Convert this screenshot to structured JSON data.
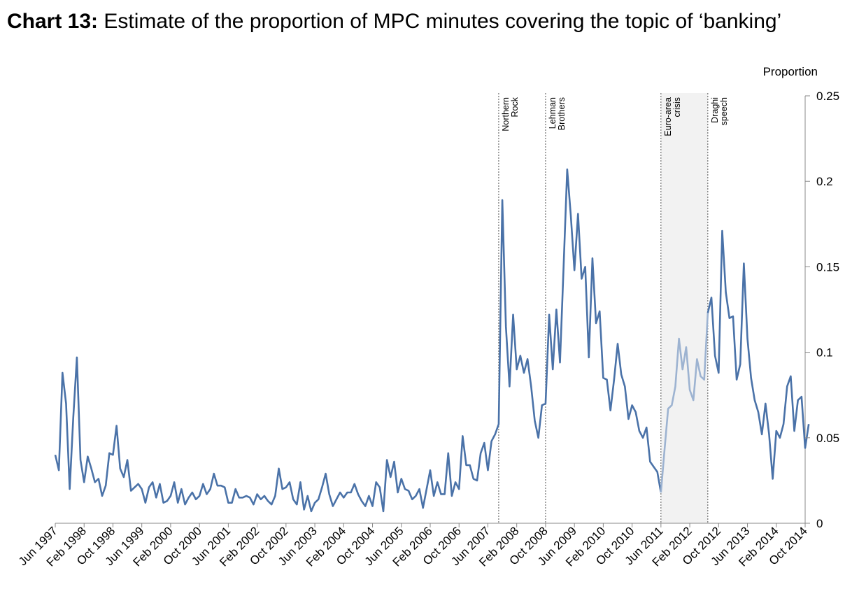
{
  "title": {
    "prefix": "Chart 13:",
    "text": "Estimate of the proportion of MPC minutes covering the topic of ‘banking’"
  },
  "chart_data": {
    "type": "line",
    "title": "Chart 13: Estimate of the proportion of MPC minutes covering the topic of ‘banking’",
    "ylabel": "Proportion",
    "xlabel": "",
    "ylim": [
      0,
      0.25
    ],
    "y_ticks": [
      0,
      0.05,
      0.1,
      0.15,
      0.2,
      0.25
    ],
    "y_tick_labels": [
      "0",
      "0.05",
      "0.1",
      "0.15",
      "0.2",
      "0.25"
    ],
    "y_axis_side": "right",
    "x_tick_labels": [
      "Jun 1997",
      "Feb 1998",
      "Oct 1998",
      "Jun 1999",
      "Feb 2000",
      "Oct 2000",
      "Jun 2001",
      "Feb 2002",
      "Oct 2002",
      "Jun 2003",
      "Feb 2004",
      "Oct 2004",
      "Jun 2005",
      "Feb 2006",
      "Oct 2006",
      "Jun 2007",
      "Feb 2008",
      "Oct 2008",
      "Jun 2009",
      "Feb 2010",
      "Oct 2010",
      "Jun 2011",
      "Feb 2012",
      "Oct 2012",
      "Jun 2013",
      "Feb 2014",
      "Oct 2014"
    ],
    "x_start": "Jun 1997",
    "x_end": "Oct 2014",
    "grid": false,
    "colors": {
      "line": "#4a72a8",
      "line_faded": "#9db3d1",
      "shade": "#f2f2f2",
      "event_line": "#555555"
    },
    "events": [
      {
        "label": "Northern Rock",
        "lines": [
          "Northern",
          "Rock"
        ],
        "date": "Sep 2007"
      },
      {
        "label": "Lehman Brothers",
        "lines": [
          "Lehman",
          "Brothers"
        ],
        "date": "Oct 2008"
      },
      {
        "label": "Euro-area crisis",
        "lines": [
          "Euro-area",
          "crisis"
        ],
        "date": "Jun 2011",
        "shaded_until": "Jul 2012",
        "faded": true
      },
      {
        "label": "Draghi speech",
        "lines": [
          "Draghi",
          "speech"
        ],
        "date": "Jul 2012"
      }
    ],
    "series": [
      {
        "values": [
          0.04,
          0.031,
          0.088,
          0.07,
          0.02,
          0.062,
          0.097,
          0.037,
          0.024,
          0.039,
          0.032,
          0.024,
          0.026,
          0.016,
          0.022,
          0.041,
          0.04,
          0.057,
          0.032,
          0.027,
          0.037,
          0.019,
          0.021,
          0.023,
          0.02,
          0.012,
          0.021,
          0.024,
          0.015,
          0.023,
          0.012,
          0.013,
          0.016,
          0.024,
          0.012,
          0.02,
          0.011,
          0.015,
          0.018,
          0.014,
          0.016,
          0.023,
          0.017,
          0.02,
          0.029,
          0.022,
          0.022,
          0.021,
          0.012,
          0.012,
          0.02,
          0.015,
          0.015,
          0.016,
          0.015,
          0.011,
          0.017,
          0.014,
          0.016,
          0.013,
          0.011,
          0.016,
          0.032,
          0.02,
          0.021,
          0.024,
          0.014,
          0.011,
          0.024,
          0.008,
          0.016,
          0.007,
          0.012,
          0.014,
          0.021,
          0.029,
          0.017,
          0.01,
          0.014,
          0.018,
          0.015,
          0.018,
          0.018,
          0.023,
          0.017,
          0.013,
          0.01,
          0.016,
          0.01,
          0.024,
          0.021,
          0.007,
          0.037,
          0.027,
          0.036,
          0.018,
          0.026,
          0.02,
          0.019,
          0.014,
          0.016,
          0.02,
          0.009,
          0.02,
          0.031,
          0.016,
          0.024,
          0.017,
          0.017,
          0.041,
          0.016,
          0.024,
          0.02,
          0.051,
          0.034,
          0.034,
          0.026,
          0.025,
          0.041,
          0.047,
          0.031,
          0.048,
          0.052,
          0.058,
          0.189,
          0.115,
          0.08,
          0.122,
          0.09,
          0.098,
          0.088,
          0.096,
          0.08,
          0.06,
          0.05,
          0.069,
          0.07,
          0.122,
          0.09,
          0.125,
          0.094,
          0.15,
          0.207,
          0.18,
          0.148,
          0.181,
          0.143,
          0.15,
          0.097,
          0.155,
          0.117,
          0.124,
          0.085,
          0.084,
          0.066,
          0.084,
          0.105,
          0.087,
          0.08,
          0.061,
          0.069,
          0.065,
          0.054,
          0.05,
          0.056,
          0.036,
          0.033,
          0.03,
          0.018,
          0.043,
          0.067,
          0.069,
          0.08,
          0.108,
          0.09,
          0.103,
          0.078,
          0.072,
          0.096,
          0.086,
          0.084,
          0.123,
          0.132,
          0.098,
          0.088,
          0.171,
          0.135,
          0.12,
          0.121,
          0.084,
          0.093,
          0.152,
          0.108,
          0.085,
          0.072,
          0.065,
          0.052,
          0.07,
          0.052,
          0.026,
          0.054,
          0.05,
          0.058,
          0.08,
          0.086,
          0.054,
          0.072,
          0.074,
          0.044,
          0.058
        ]
      }
    ]
  }
}
